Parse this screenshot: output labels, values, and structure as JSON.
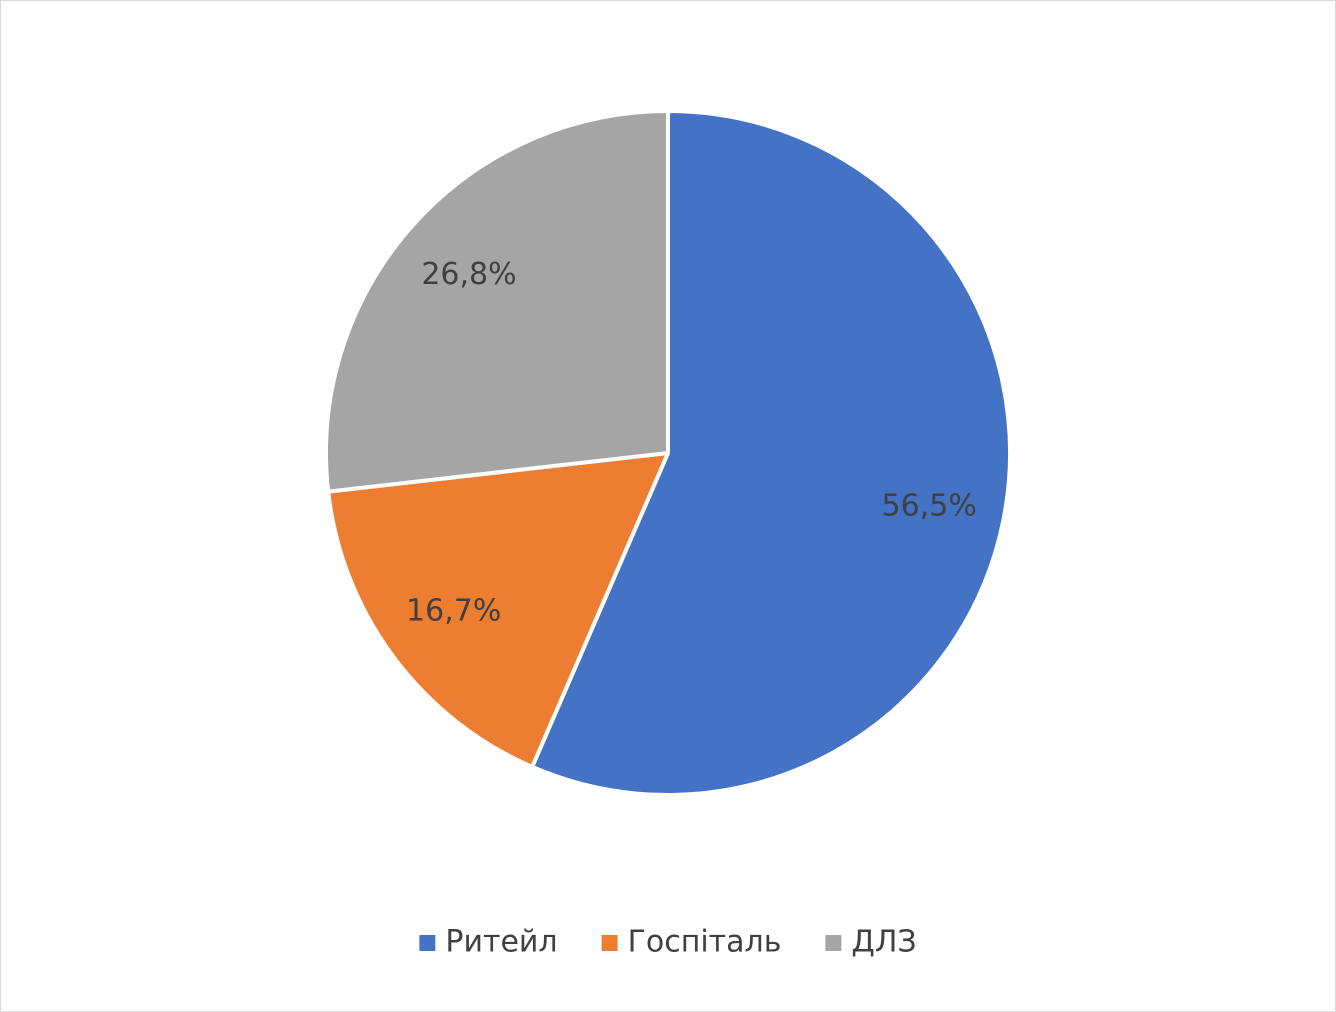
{
  "chart_data": {
    "type": "pie",
    "categories": [
      "Ритейл",
      "Госпіталь",
      "ДЛЗ"
    ],
    "values": [
      56.5,
      16.7,
      26.8
    ],
    "value_labels": [
      "56,5%",
      "16,7%",
      "26,8%"
    ],
    "colors": [
      "#4472c4",
      "#ed7d31",
      "#a5a5a5"
    ],
    "legend": "bottom"
  }
}
